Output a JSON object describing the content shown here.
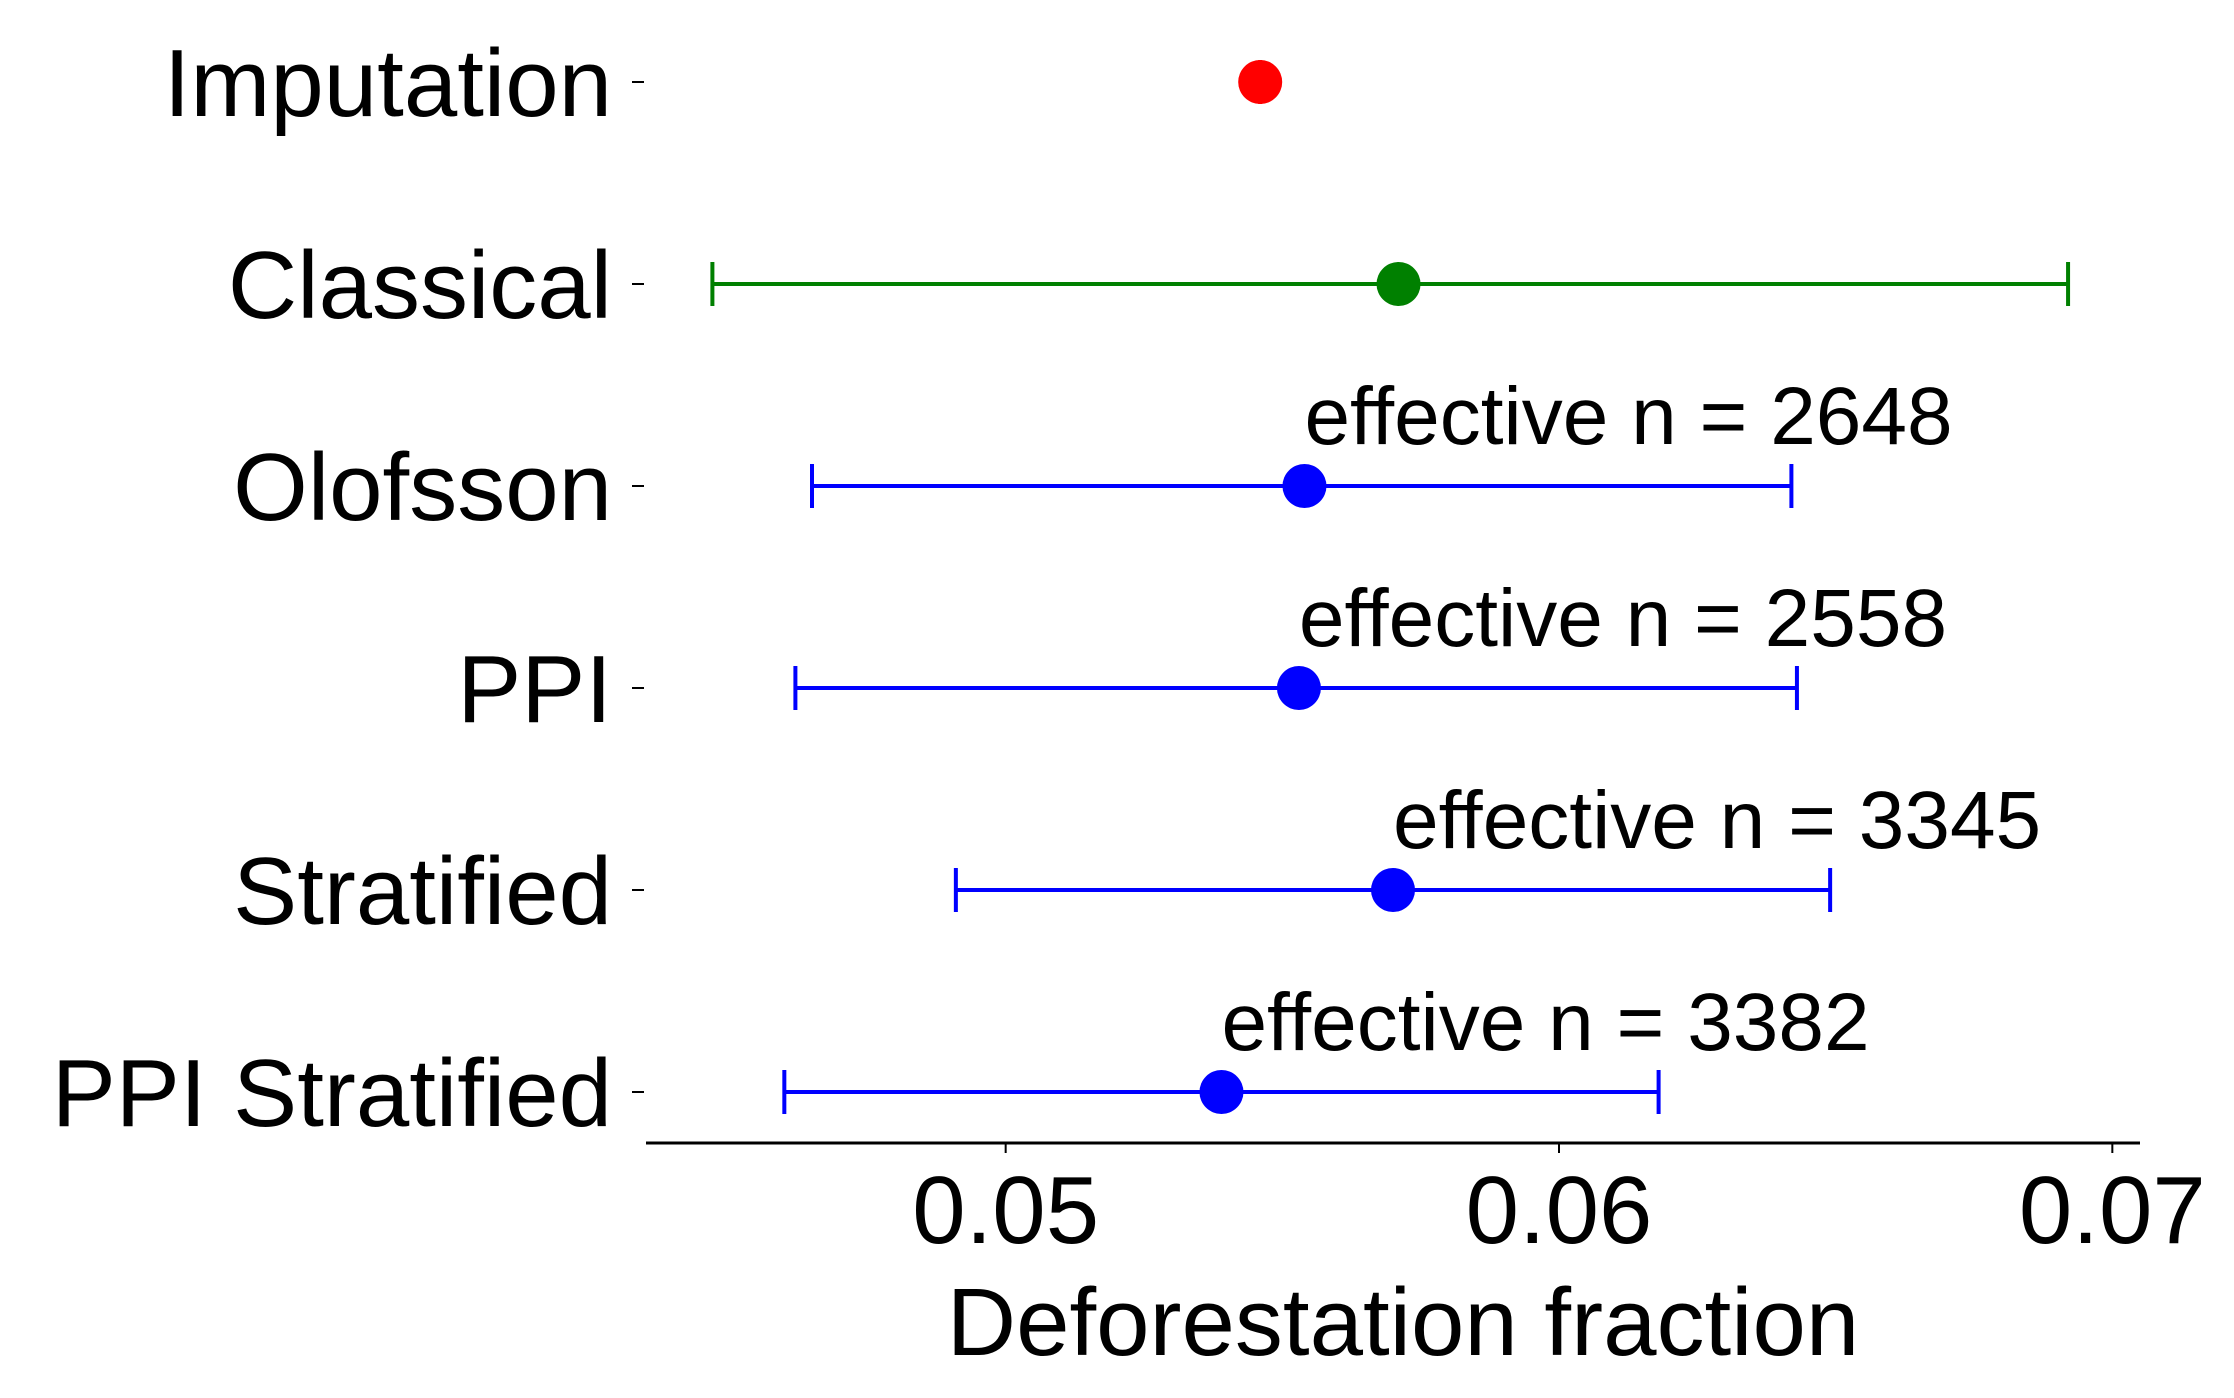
{
  "chart_data": {
    "type": "errorbar",
    "xlabel": "Deforestation fraction",
    "xlim": [
      0.0435,
      0.0705
    ],
    "xticks": [
      {
        "value": 0.05,
        "label": "0.05"
      },
      {
        "value": 0.06,
        "label": "0.06"
      },
      {
        "value": 0.07,
        "label": "0.07"
      }
    ],
    "categories": [
      "Imputation",
      "Classical",
      "Olofsson",
      "PPI",
      "Stratified",
      "PPI Stratified"
    ],
    "series": [
      {
        "category": "Imputation",
        "estimate": 0.0546,
        "lower": 0.0546,
        "upper": 0.0546,
        "color": "#ff0000",
        "annotation": ""
      },
      {
        "category": "Classical",
        "estimate": 0.0571,
        "lower": 0.0447,
        "upper": 0.0692,
        "color": "#008000",
        "annotation": ""
      },
      {
        "category": "Olofsson",
        "estimate": 0.0554,
        "lower": 0.0465,
        "upper": 0.0642,
        "color": "#0000ff",
        "annotation": "effective n = 2648"
      },
      {
        "category": "PPI",
        "estimate": 0.0553,
        "lower": 0.0462,
        "upper": 0.0643,
        "color": "#0000ff",
        "annotation": "effective n = 2558"
      },
      {
        "category": "Stratified",
        "estimate": 0.057,
        "lower": 0.0491,
        "upper": 0.0649,
        "color": "#0000ff",
        "annotation": "effective n = 3345"
      },
      {
        "category": "PPI Stratified",
        "estimate": 0.0539,
        "lower": 0.046,
        "upper": 0.0618,
        "color": "#0000ff",
        "annotation": "effective n = 3382"
      }
    ],
    "grid": false
  }
}
